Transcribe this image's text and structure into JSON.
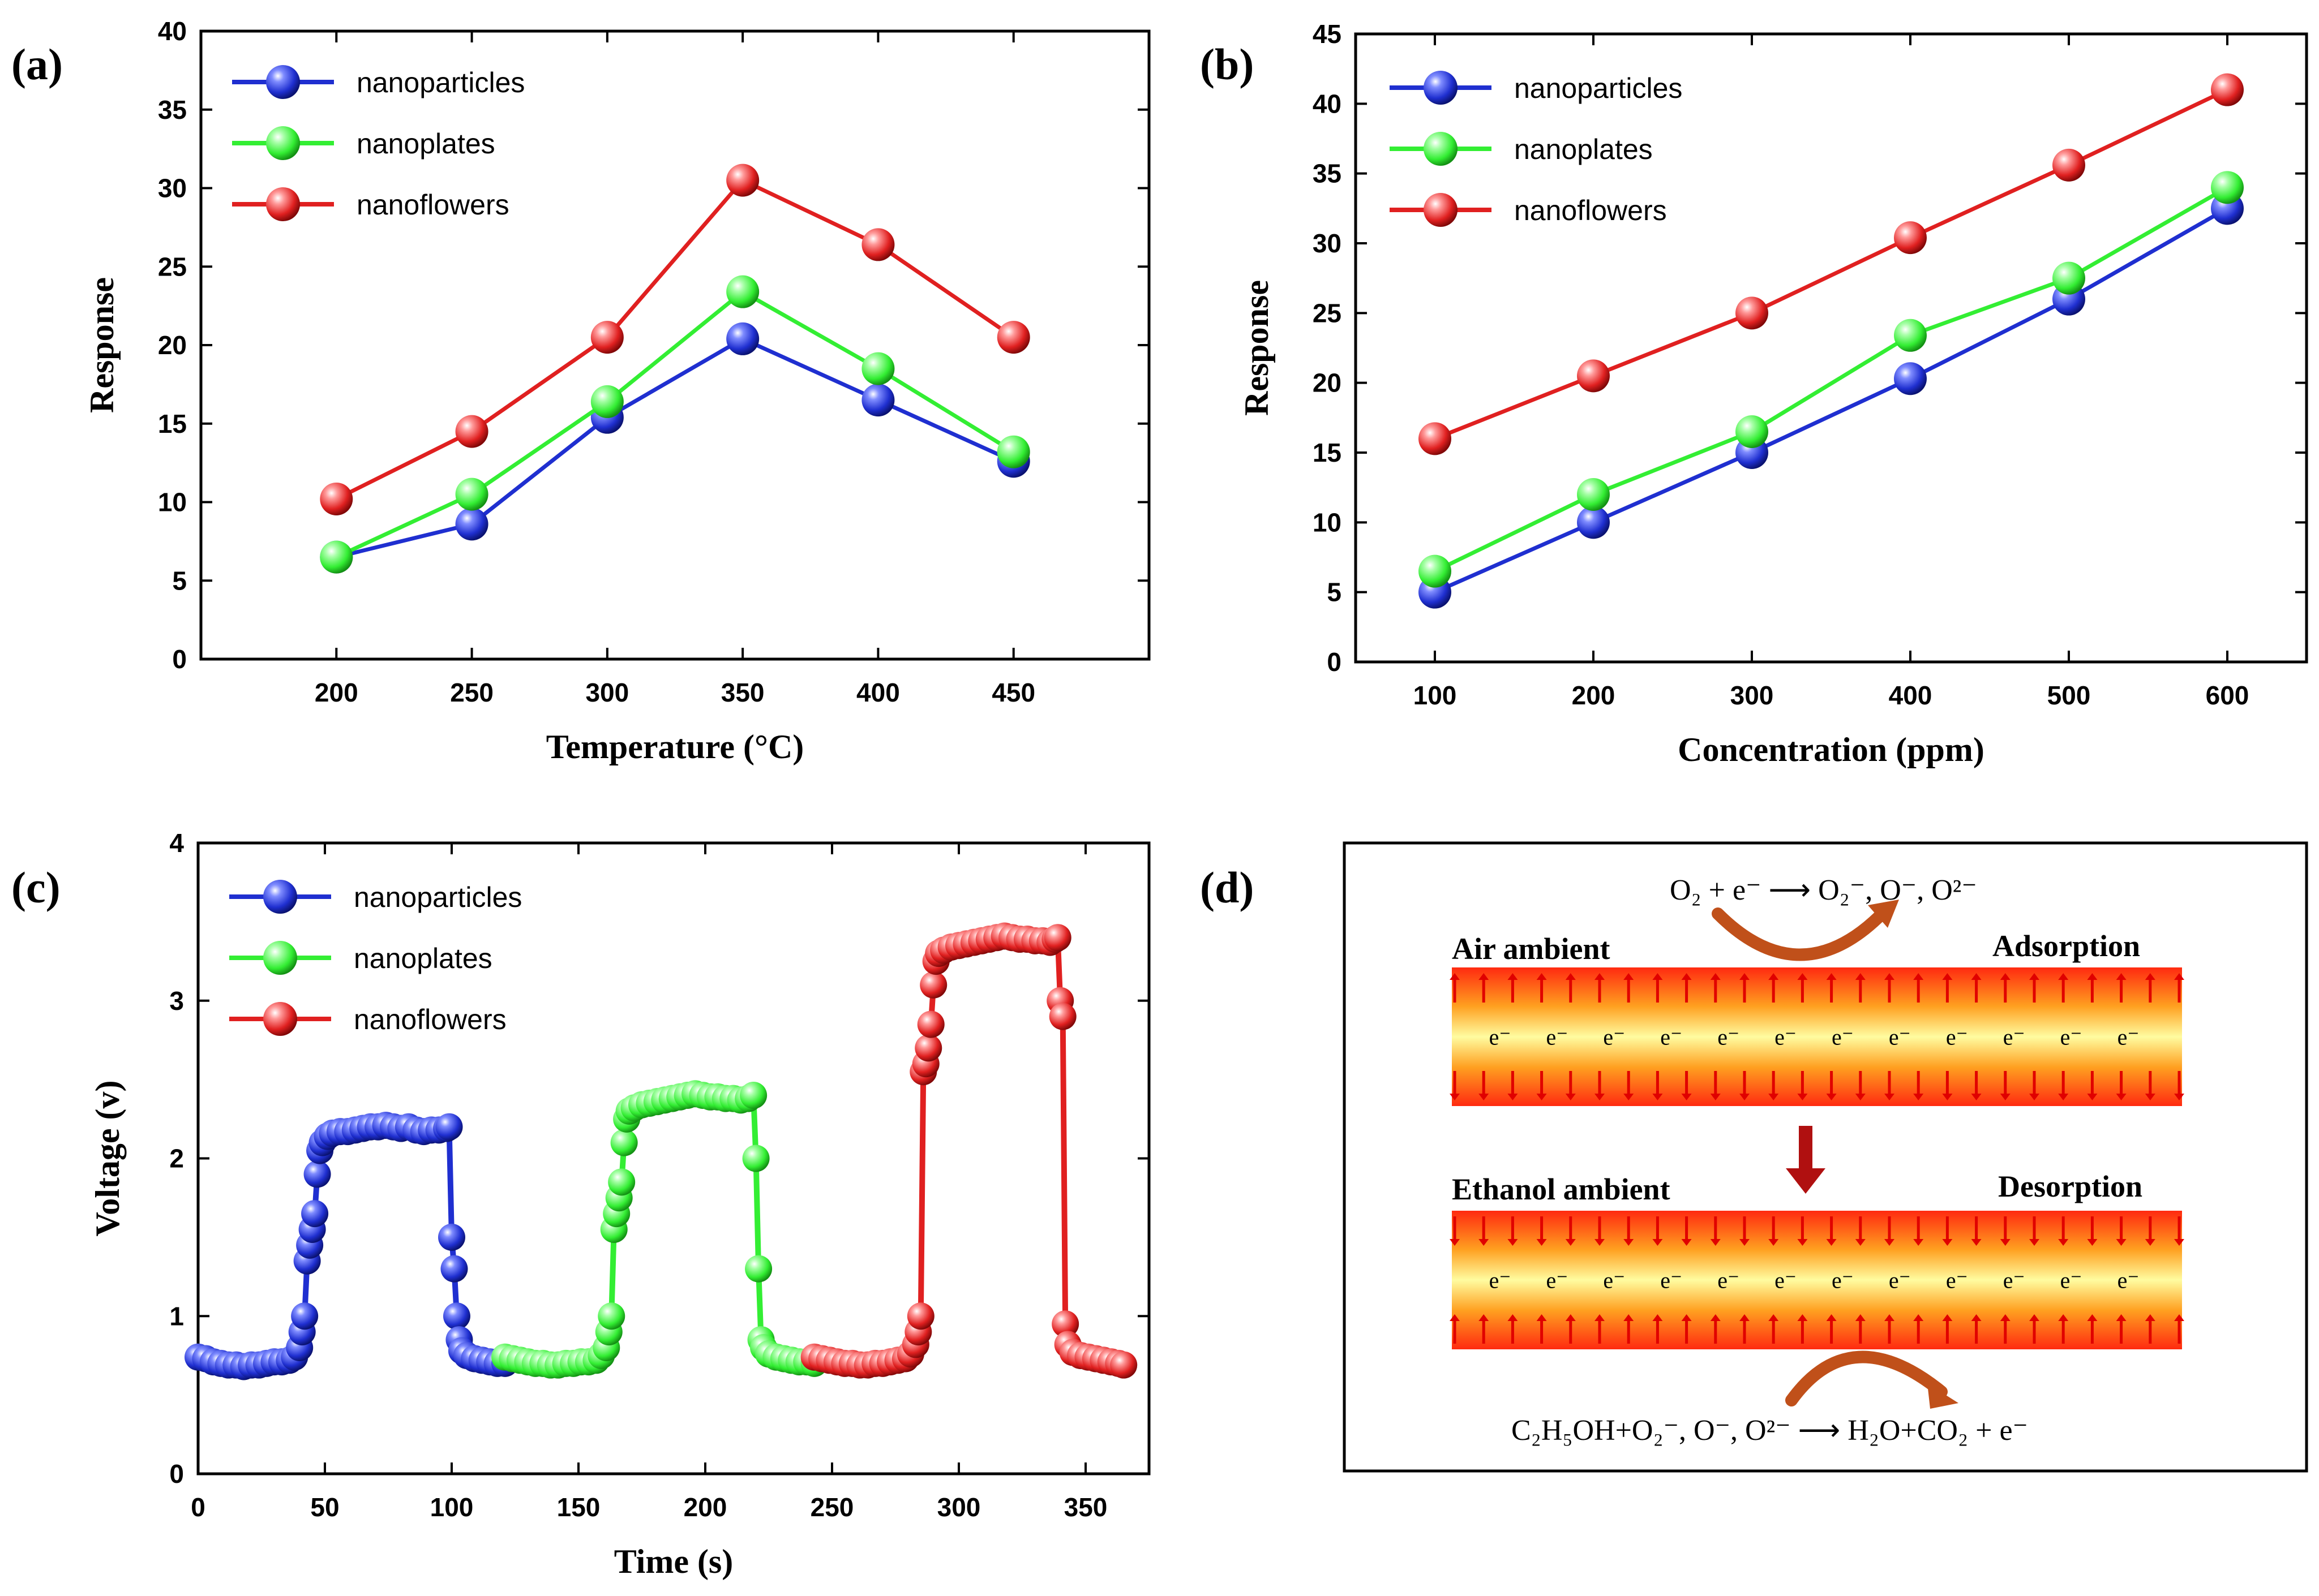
{
  "colors": {
    "nanoparticles": "#1f2fd0",
    "nanoplates": "#33ee33",
    "nanoflowers": "#e02020",
    "arrow": "#e00000",
    "curve_arrow": "#c0501a",
    "down_arrow": "#b01010"
  },
  "chart_data": [
    {
      "panel": "(a)",
      "type": "line",
      "xlabel": "Temperature (°C)",
      "ylabel": "Response",
      "xlim": [
        150,
        500
      ],
      "ylim": [
        0,
        40
      ],
      "xticks": [
        200,
        250,
        300,
        350,
        400,
        450
      ],
      "yticks": [
        0,
        5,
        10,
        15,
        20,
        25,
        30,
        35,
        40
      ],
      "legend_position": "top-left",
      "x": [
        200,
        250,
        300,
        350,
        400,
        450
      ],
      "series": [
        {
          "name": "nanoparticles",
          "color_key": "nanoparticles",
          "values": [
            6.5,
            8.6,
            15.4,
            20.4,
            16.5,
            12.6
          ]
        },
        {
          "name": "nanoplates",
          "color_key": "nanoplates",
          "values": [
            6.5,
            10.5,
            16.4,
            23.4,
            18.5,
            13.2
          ]
        },
        {
          "name": "nanoflowers",
          "color_key": "nanoflowers",
          "values": [
            10.2,
            14.5,
            20.5,
            30.5,
            26.4,
            20.5
          ]
        }
      ]
    },
    {
      "panel": "(b)",
      "type": "line",
      "xlabel": "Concentration (ppm)",
      "ylabel": "Response",
      "xlim": [
        50,
        650
      ],
      "ylim": [
        0,
        45
      ],
      "xticks": [
        100,
        200,
        300,
        400,
        500,
        600
      ],
      "yticks": [
        0,
        5,
        10,
        15,
        20,
        25,
        30,
        35,
        40,
        45
      ],
      "legend_position": "top-left",
      "x": [
        100,
        200,
        300,
        400,
        500,
        600
      ],
      "series": [
        {
          "name": "nanoparticles",
          "color_key": "nanoparticles",
          "values": [
            5.0,
            10.0,
            15.0,
            20.3,
            26.0,
            32.5
          ]
        },
        {
          "name": "nanoplates",
          "color_key": "nanoplates",
          "values": [
            6.5,
            12.0,
            16.5,
            23.4,
            27.5,
            34.0
          ]
        },
        {
          "name": "nanoflowers",
          "color_key": "nanoflowers",
          "values": [
            16.0,
            20.5,
            25.0,
            30.4,
            35.6,
            41.0
          ]
        }
      ]
    },
    {
      "panel": "(c)",
      "type": "scatter",
      "xlabel": "Time (s)",
      "ylabel": "Voltage (v)",
      "xlim": [
        0,
        375
      ],
      "ylim": [
        0,
        4
      ],
      "xticks": [
        0,
        50,
        100,
        150,
        200,
        250,
        300,
        350
      ],
      "yticks": [
        0,
        1,
        2,
        3,
        4
      ],
      "legend_position": "top-left",
      "series": [
        {
          "name": "nanoparticles",
          "color_key": "nanoparticles",
          "points": [
            [
              0,
              0.74
            ],
            [
              3,
              0.73
            ],
            [
              6,
              0.71
            ],
            [
              9,
              0.7
            ],
            [
              12,
              0.69
            ],
            [
              15,
              0.69
            ],
            [
              18,
              0.68
            ],
            [
              21,
              0.69
            ],
            [
              24,
              0.69
            ],
            [
              27,
              0.7
            ],
            [
              30,
              0.71
            ],
            [
              33,
              0.71
            ],
            [
              36,
              0.72
            ],
            [
              38,
              0.74
            ],
            [
              40,
              0.8
            ],
            [
              41,
              0.9
            ],
            [
              42,
              1.0
            ],
            [
              43,
              1.35
            ],
            [
              44,
              1.45
            ],
            [
              45,
              1.55
            ],
            [
              46,
              1.65
            ],
            [
              47,
              1.9
            ],
            [
              48,
              2.05
            ],
            [
              49,
              2.1
            ],
            [
              51,
              2.14
            ],
            [
              53,
              2.16
            ],
            [
              56,
              2.17
            ],
            [
              59,
              2.17
            ],
            [
              62,
              2.18
            ],
            [
              65,
              2.19
            ],
            [
              68,
              2.2
            ],
            [
              71,
              2.2
            ],
            [
              74,
              2.21
            ],
            [
              77,
              2.2
            ],
            [
              80,
              2.19
            ],
            [
              83,
              2.2
            ],
            [
              86,
              2.18
            ],
            [
              89,
              2.17
            ],
            [
              92,
              2.18
            ],
            [
              95,
              2.18
            ],
            [
              98,
              2.19
            ],
            [
              99,
              2.2
            ],
            [
              100,
              1.5
            ],
            [
              101,
              1.3
            ],
            [
              102,
              1.0
            ],
            [
              103,
              0.85
            ],
            [
              104,
              0.78
            ],
            [
              106,
              0.75
            ],
            [
              109,
              0.73
            ],
            [
              112,
              0.72
            ],
            [
              115,
              0.71
            ],
            [
              118,
              0.7
            ],
            [
              121,
              0.7
            ]
          ]
        },
        {
          "name": "nanoplates",
          "color_key": "nanoplates",
          "points": [
            [
              121,
              0.74
            ],
            [
              124,
              0.73
            ],
            [
              127,
              0.72
            ],
            [
              130,
              0.71
            ],
            [
              133,
              0.7
            ],
            [
              136,
              0.7
            ],
            [
              139,
              0.69
            ],
            [
              142,
              0.69
            ],
            [
              145,
              0.7
            ],
            [
              148,
              0.7
            ],
            [
              151,
              0.71
            ],
            [
              154,
              0.71
            ],
            [
              157,
              0.72
            ],
            [
              159,
              0.75
            ],
            [
              161,
              0.8
            ],
            [
              162,
              0.9
            ],
            [
              163,
              1.0
            ],
            [
              164,
              1.55
            ],
            [
              165,
              1.65
            ],
            [
              166,
              1.75
            ],
            [
              167,
              1.85
            ],
            [
              168,
              2.1
            ],
            [
              169,
              2.25
            ],
            [
              170,
              2.3
            ],
            [
              172,
              2.32
            ],
            [
              175,
              2.34
            ],
            [
              178,
              2.35
            ],
            [
              181,
              2.36
            ],
            [
              184,
              2.37
            ],
            [
              187,
              2.38
            ],
            [
              190,
              2.39
            ],
            [
              193,
              2.4
            ],
            [
              196,
              2.41
            ],
            [
              199,
              2.4
            ],
            [
              202,
              2.39
            ],
            [
              205,
              2.39
            ],
            [
              208,
              2.38
            ],
            [
              211,
              2.38
            ],
            [
              214,
              2.37
            ],
            [
              217,
              2.38
            ],
            [
              219,
              2.4
            ],
            [
              220,
              2.0
            ],
            [
              221,
              1.3
            ],
            [
              222,
              0.85
            ],
            [
              223,
              0.8
            ],
            [
              225,
              0.76
            ],
            [
              228,
              0.74
            ],
            [
              231,
              0.73
            ],
            [
              234,
              0.72
            ],
            [
              237,
              0.71
            ],
            [
              240,
              0.71
            ],
            [
              243,
              0.7
            ]
          ]
        },
        {
          "name": "nanoflowers",
          "color_key": "nanoflowers",
          "points": [
            [
              243,
              0.74
            ],
            [
              246,
              0.73
            ],
            [
              249,
              0.72
            ],
            [
              252,
              0.71
            ],
            [
              255,
              0.7
            ],
            [
              258,
              0.7
            ],
            [
              261,
              0.69
            ],
            [
              264,
              0.69
            ],
            [
              267,
              0.7
            ],
            [
              270,
              0.7
            ],
            [
              273,
              0.71
            ],
            [
              276,
              0.72
            ],
            [
              279,
              0.73
            ],
            [
              281,
              0.76
            ],
            [
              283,
              0.82
            ],
            [
              284,
              0.9
            ],
            [
              285,
              1.0
            ],
            [
              286,
              2.55
            ],
            [
              287,
              2.6
            ],
            [
              288,
              2.7
            ],
            [
              289,
              2.85
            ],
            [
              290,
              3.1
            ],
            [
              291,
              3.25
            ],
            [
              292,
              3.3
            ],
            [
              294,
              3.32
            ],
            [
              297,
              3.34
            ],
            [
              300,
              3.35
            ],
            [
              303,
              3.36
            ],
            [
              306,
              3.37
            ],
            [
              309,
              3.38
            ],
            [
              312,
              3.39
            ],
            [
              315,
              3.4
            ],
            [
              318,
              3.41
            ],
            [
              321,
              3.4
            ],
            [
              324,
              3.39
            ],
            [
              327,
              3.39
            ],
            [
              330,
              3.38
            ],
            [
              333,
              3.38
            ],
            [
              336,
              3.37
            ],
            [
              338,
              3.39
            ],
            [
              339,
              3.4
            ],
            [
              340,
              3.0
            ],
            [
              341,
              2.9
            ],
            [
              342,
              0.95
            ],
            [
              343,
              0.82
            ],
            [
              345,
              0.77
            ],
            [
              348,
              0.75
            ],
            [
              351,
              0.74
            ],
            [
              354,
              0.73
            ],
            [
              357,
              0.72
            ],
            [
              360,
              0.71
            ],
            [
              363,
              0.7
            ],
            [
              365,
              0.69
            ]
          ]
        }
      ]
    }
  ],
  "panel_d": {
    "label": "(d)",
    "top_equation": "O₂ + e⁻ ⟶ O₂⁻, O⁻, O²⁻",
    "air_label": "Air ambient",
    "adsorption_label": "Adsorption",
    "ethanol_label": "Ethanol ambient",
    "desorption_label": "Desorption",
    "electron": "e⁻",
    "bottom_equation": "C₂H₅OH+O₂⁻, O⁻, O²⁻ ⟶ H₂O+CO₂ + e⁻"
  }
}
